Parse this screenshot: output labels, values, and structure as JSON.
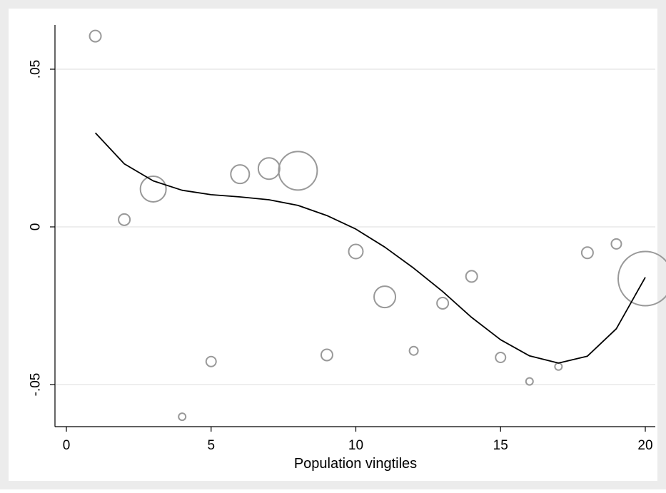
{
  "chart_data": {
    "type": "scatter",
    "title": "",
    "xlabel": "Population vingtiles",
    "ylabel": "",
    "xlim": [
      0,
      20
    ],
    "ylim": [
      -0.0625,
      0.0625
    ],
    "x_ticks": [
      0,
      5,
      10,
      15,
      20
    ],
    "x_tick_labels": [
      "0",
      "5",
      "10",
      "15",
      "20"
    ],
    "y_ticks": [
      -0.05,
      0,
      0.05
    ],
    "y_tick_labels": [
      "-.05",
      "0",
      ".05"
    ],
    "grid": "horizontal",
    "legend": "none",
    "series": [
      {
        "type": "scatter",
        "marker": "hollow-circle",
        "color": "#999999",
        "x": [
          1,
          2,
          3,
          4,
          5,
          6,
          7,
          8,
          9,
          10,
          11,
          12,
          13,
          14,
          15,
          16,
          17,
          18,
          19,
          20
        ],
        "y": [
          0.0605,
          0.0023,
          0.012,
          -0.0602,
          -0.0427,
          0.0167,
          0.0185,
          0.0178,
          -0.0406,
          -0.0078,
          -0.0222,
          -0.0393,
          -0.0242,
          -0.0157,
          -0.0414,
          -0.049,
          -0.0443,
          -0.0082,
          -0.0054,
          -0.0164
        ],
        "weights": [
          8,
          8,
          18,
          5,
          7,
          13,
          15,
          27,
          8,
          10,
          15,
          6,
          8,
          8,
          7,
          5,
          5,
          8,
          7,
          38
        ]
      },
      {
        "type": "line",
        "color": "#000000",
        "x": [
          1,
          2,
          3,
          4,
          5,
          6,
          7,
          8,
          9,
          10,
          11,
          12,
          13,
          14,
          15,
          16,
          17,
          18,
          19,
          20
        ],
        "y": [
          0.0298,
          0.02,
          0.0146,
          0.0116,
          0.0102,
          0.0095,
          0.0086,
          0.0068,
          0.0036,
          -0.0007,
          -0.0064,
          -0.0131,
          -0.0205,
          -0.0287,
          -0.0358,
          -0.0409,
          -0.0432,
          -0.041,
          -0.0323,
          -0.016
        ]
      }
    ]
  },
  "colors": {
    "outer_background": "#ececec",
    "plot_background": "#ffffff",
    "grid": "#e3e3e3",
    "axis": "#000000",
    "marker": "#999999",
    "fit_line": "#000000"
  }
}
